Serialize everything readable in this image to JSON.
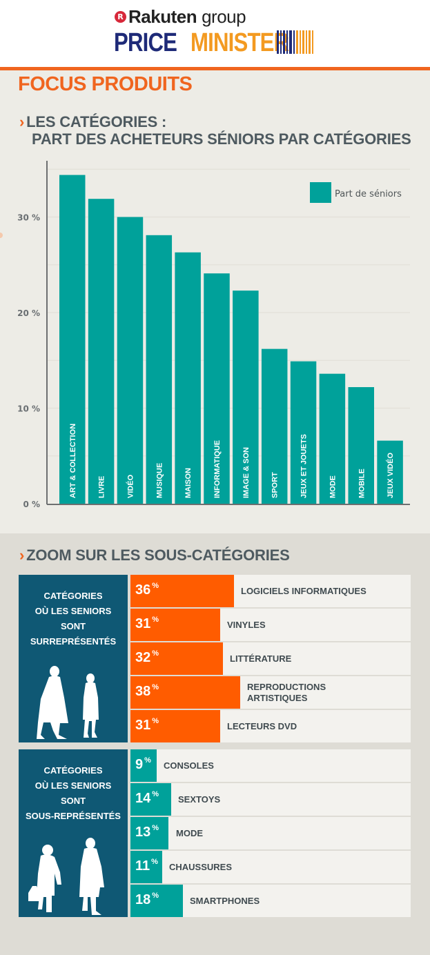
{
  "header": {
    "brand_badge": "R",
    "brand_name": "Rakuten",
    "brand_suffix": "group",
    "logo_part1": "PRICE",
    "logo_part2": "MINISTER"
  },
  "page_title": "FOCUS PRODUITS",
  "section1": {
    "chevron": "›",
    "line1": "LES CATÉGORIES :",
    "line2": "PART DES ACHETEURS SÉNIORS PAR CATÉGORIES"
  },
  "chart_data": {
    "type": "bar",
    "title": "LES CATÉGORIES : PART DES ACHETEURS SÉNIORS PAR CATÉGORIES",
    "xlabel": "",
    "ylabel": "",
    "categories": [
      "ART & COLLECTION",
      "LIVRE",
      "VIDÉO",
      "MUSIQUE",
      "MAISON",
      "INFORMATIQUE",
      "IMAGE & SON",
      "SPORT",
      "JEUX ET JOUETS",
      "MODE",
      "MOBILE",
      "JEUX VIDÉO"
    ],
    "series": [
      {
        "name": "Part de séniors",
        "values": [
          34.4,
          31.9,
          30.0,
          28.1,
          26.3,
          24.1,
          22.3,
          16.2,
          14.9,
          13.6,
          12.2,
          6.6
        ]
      }
    ],
    "ylim": [
      0,
      35
    ],
    "yticks": [
      0,
      10,
      20,
      30
    ],
    "ytick_labels": [
      "0 %",
      "10 %",
      "20 %",
      "30 %"
    ],
    "grid": true,
    "grid_step": 5,
    "legend": {
      "position": "top-right",
      "entries": [
        "Part de séniors"
      ]
    },
    "colors": {
      "bar": "#00a19a",
      "axis": "#6d6f70",
      "grid": "#e2e0d8"
    }
  },
  "section2": {
    "chevron": "›",
    "title": "ZOOM SUR LES SOUS-CATÉGORIES"
  },
  "over_represented": {
    "panel_lines": [
      "CATÉGORIES",
      "OÙ LES SENIORS",
      "SONT",
      "SURREPRÉSENTÉS"
    ],
    "color": "#ff5c00",
    "items": [
      {
        "value": 36,
        "pct_unit": "%",
        "label": "LOGICIELS INFORMATIQUES"
      },
      {
        "value": 31,
        "pct_unit": "%",
        "label": "VINYLES"
      },
      {
        "value": 32,
        "pct_unit": "%",
        "label": "LITTÉRATURE"
      },
      {
        "value": 38,
        "pct_unit": "%",
        "label": "REPRODUCTIONS ARTISTIQUES",
        "label_lines": [
          "REPRODUCTIONS",
          "ARTISTIQUES"
        ]
      },
      {
        "value": 31,
        "pct_unit": "%",
        "label": "LECTEURS DVD"
      }
    ]
  },
  "under_represented": {
    "panel_lines": [
      "CATÉGORIES",
      "OÙ LES SENIORS",
      "SONT",
      "SOUS-REPRÉSENTÉS"
    ],
    "color": "#00a19a",
    "items": [
      {
        "value": 9,
        "pct_unit": "%",
        "label": "CONSOLES"
      },
      {
        "value": 14,
        "pct_unit": "%",
        "label": "SEXTOYS"
      },
      {
        "value": 13,
        "pct_unit": "%",
        "label": "MODE"
      },
      {
        "value": 11,
        "pct_unit": "%",
        "label": "CHAUSSURES"
      },
      {
        "value": 18,
        "pct_unit": "%",
        "label": "SMARTPHONES"
      }
    ]
  },
  "colors": {
    "accent": "#f0651f",
    "panel": "#0f5874",
    "heading": "#4e5a60",
    "logo_blue": "#1e2a78",
    "logo_orange": "#f39a21"
  }
}
